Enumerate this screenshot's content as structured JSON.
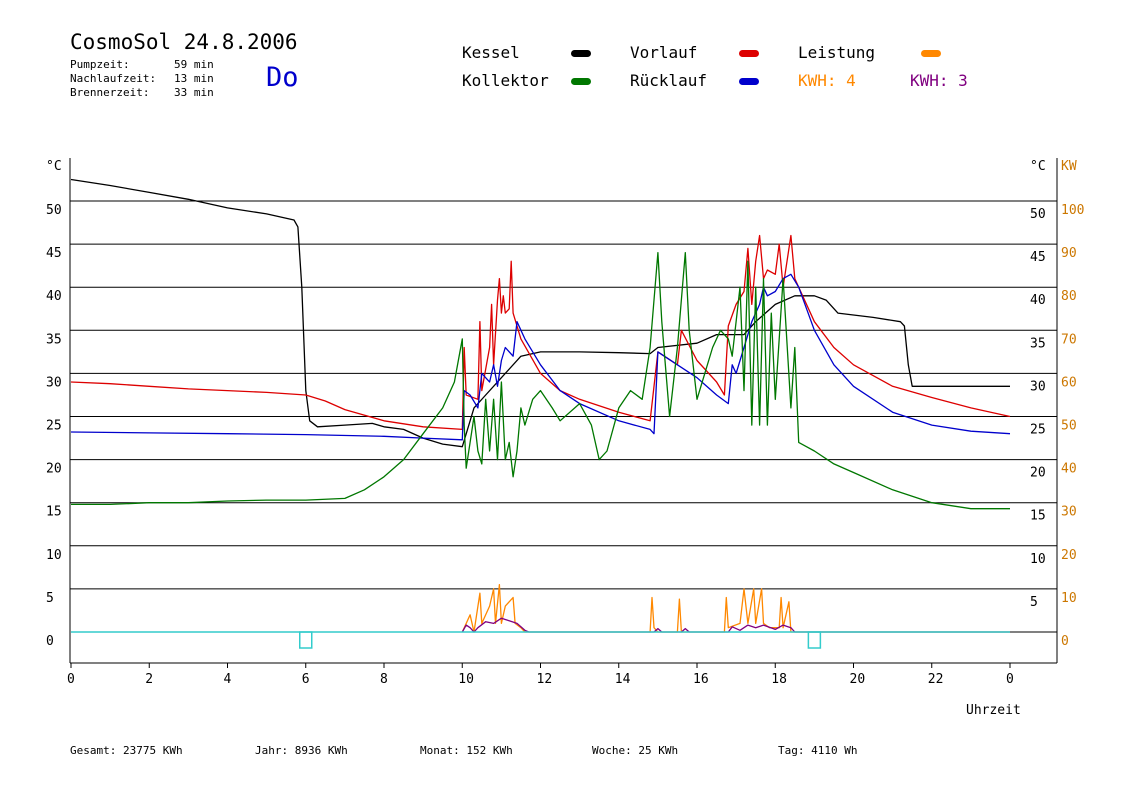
{
  "header": {
    "title": "CosmoSol 24.8.2006",
    "day": "Do",
    "stats": [
      {
        "label": "Pumpzeit:",
        "value": "59 min"
      },
      {
        "label": "Nachlaufzeit:",
        "value": "13 min"
      },
      {
        "label": "Brennerzeit:",
        "value": "33 min"
      }
    ]
  },
  "legend": {
    "kessel": "Kessel",
    "kollektor": "Kollektor",
    "vorlauf": "Vorlauf",
    "ruecklauf": "Rücklauf",
    "leistung": "Leistung",
    "kwh_orange": "KWH: 4",
    "kwh_purple": "KWH: 3"
  },
  "colors": {
    "kessel": "#000000",
    "kollektor": "#007700",
    "vorlauf": "#dd0000",
    "ruecklauf": "#0000cc",
    "leistung": "#ff8800",
    "kwh_purple": "#800080",
    "pump": "#33cccc"
  },
  "footer": [
    {
      "label": "Gesamt:",
      "value": "23775 KWh"
    },
    {
      "label": "Jahr:",
      "value": "8936 KWh"
    },
    {
      "label": "Monat:",
      "value": "152 KWh"
    },
    {
      "label": "Woche:",
      "value": "25 KWh"
    },
    {
      "label": "Tag:",
      "value": "4110 Wh"
    }
  ],
  "chart_data": {
    "type": "line",
    "xlabel": "Uhrzeit",
    "ylabel_left": "°C",
    "ylabel_right_temp": "°C",
    "ylabel_right_power": "KW",
    "xlim": [
      0,
      24
    ],
    "ylim": [
      -3.6,
      55
    ],
    "x_ticks": [
      "0",
      "2",
      "4",
      "6",
      "8",
      "10",
      "12",
      "14",
      "16",
      "18",
      "20",
      "22",
      "0"
    ],
    "y_ticks_left": [
      0,
      5,
      10,
      15,
      20,
      25,
      30,
      35,
      40,
      45,
      50
    ],
    "y_ticks_right_temp": [
      5,
      10,
      15,
      20,
      25,
      30,
      35,
      40,
      45,
      50
    ],
    "y_ticks_right_power": [
      0,
      10,
      20,
      30,
      40,
      50,
      60,
      70,
      80,
      90,
      100
    ],
    "series": [
      {
        "name": "Kessel",
        "key": "kessel",
        "points": [
          [
            0,
            52.5
          ],
          [
            1,
            51.8
          ],
          [
            2,
            51.0
          ],
          [
            3,
            50.2
          ],
          [
            4,
            49.2
          ],
          [
            5,
            48.5
          ],
          [
            5.7,
            47.8
          ],
          [
            5.8,
            47
          ],
          [
            5.9,
            40
          ],
          [
            6.0,
            28
          ],
          [
            6.1,
            24.5
          ],
          [
            6.3,
            23.8
          ],
          [
            7,
            24.0
          ],
          [
            7.7,
            24.2
          ],
          [
            8,
            23.8
          ],
          [
            8.5,
            23.5
          ],
          [
            9,
            22.5
          ],
          [
            9.5,
            21.8
          ],
          [
            10,
            21.5
          ],
          [
            10.3,
            26
          ],
          [
            10.6,
            27.5
          ],
          [
            11,
            29.5
          ],
          [
            11.5,
            32
          ],
          [
            12,
            32.5
          ],
          [
            13,
            32.5
          ],
          [
            14,
            32.4
          ],
          [
            14.8,
            32.3
          ],
          [
            15,
            33
          ],
          [
            16,
            33.5
          ],
          [
            16.5,
            34.5
          ],
          [
            17.2,
            34.5
          ],
          [
            17.5,
            36
          ],
          [
            18,
            38
          ],
          [
            18.5,
            39
          ],
          [
            19,
            39
          ],
          [
            19.3,
            38.5
          ],
          [
            19.6,
            37
          ],
          [
            20.5,
            36.5
          ],
          [
            21.2,
            36
          ],
          [
            21.3,
            35.5
          ],
          [
            21.4,
            31
          ],
          [
            21.5,
            28.5
          ],
          [
            22,
            28.5
          ],
          [
            23,
            28.5
          ],
          [
            24,
            28.5
          ]
        ]
      },
      {
        "name": "Vorlauf",
        "key": "vorlauf",
        "points": [
          [
            0,
            29
          ],
          [
            1,
            28.8
          ],
          [
            2,
            28.5
          ],
          [
            3,
            28.2
          ],
          [
            4,
            28
          ],
          [
            5,
            27.8
          ],
          [
            6,
            27.5
          ],
          [
            6.5,
            26.8
          ],
          [
            7,
            25.8
          ],
          [
            8,
            24.5
          ],
          [
            9,
            23.8
          ],
          [
            10,
            23.5
          ],
          [
            10.05,
            33
          ],
          [
            10.1,
            27.5
          ],
          [
            10.4,
            27
          ],
          [
            10.45,
            36
          ],
          [
            10.5,
            28
          ],
          [
            10.7,
            33
          ],
          [
            10.75,
            38
          ],
          [
            10.8,
            31
          ],
          [
            10.9,
            38.5
          ],
          [
            10.95,
            41
          ],
          [
            11.0,
            37
          ],
          [
            11.05,
            39
          ],
          [
            11.1,
            37
          ],
          [
            11.2,
            37.5
          ],
          [
            11.25,
            43
          ],
          [
            11.3,
            37
          ],
          [
            11.5,
            34
          ],
          [
            12,
            30
          ],
          [
            12.5,
            28
          ],
          [
            13,
            27
          ],
          [
            14,
            25.5
          ],
          [
            14.8,
            24.5
          ],
          [
            15,
            32.5
          ],
          [
            15.5,
            31
          ],
          [
            15.6,
            35
          ],
          [
            16,
            31.5
          ],
          [
            16.5,
            29
          ],
          [
            16.7,
            27.5
          ],
          [
            16.8,
            35.5
          ],
          [
            17.0,
            38
          ],
          [
            17.2,
            39.5
          ],
          [
            17.3,
            44.5
          ],
          [
            17.4,
            38
          ],
          [
            17.5,
            43
          ],
          [
            17.6,
            46
          ],
          [
            17.7,
            41
          ],
          [
            17.8,
            42
          ],
          [
            18.0,
            41.5
          ],
          [
            18.1,
            45
          ],
          [
            18.2,
            40
          ],
          [
            18.4,
            46
          ],
          [
            18.5,
            41
          ],
          [
            19,
            36
          ],
          [
            19.5,
            33
          ],
          [
            20,
            31
          ],
          [
            21,
            28.5
          ],
          [
            22,
            27.2
          ],
          [
            23,
            26
          ],
          [
            24,
            25
          ]
        ]
      },
      {
        "name": "Rücklauf",
        "key": "ruecklauf",
        "points": [
          [
            0,
            23.2
          ],
          [
            2,
            23.1
          ],
          [
            4,
            23.0
          ],
          [
            6,
            22.9
          ],
          [
            8,
            22.7
          ],
          [
            9,
            22.5
          ],
          [
            10,
            22.3
          ],
          [
            10.05,
            28
          ],
          [
            10.2,
            27.5
          ],
          [
            10.4,
            26
          ],
          [
            10.5,
            30
          ],
          [
            10.7,
            29
          ],
          [
            10.8,
            31
          ],
          [
            10.9,
            28.5
          ],
          [
            11.0,
            31.5
          ],
          [
            11.1,
            33
          ],
          [
            11.3,
            32
          ],
          [
            11.4,
            36
          ],
          [
            11.6,
            34
          ],
          [
            12,
            31
          ],
          [
            12.5,
            28
          ],
          [
            13,
            26.5
          ],
          [
            14,
            24.5
          ],
          [
            14.8,
            23.5
          ],
          [
            14.9,
            23
          ],
          [
            15,
            32.5
          ],
          [
            15.5,
            31
          ],
          [
            16,
            29.5
          ],
          [
            16.5,
            27.5
          ],
          [
            16.8,
            26.5
          ],
          [
            16.9,
            31
          ],
          [
            17.0,
            30
          ],
          [
            17.2,
            33
          ],
          [
            17.4,
            36
          ],
          [
            17.6,
            38
          ],
          [
            17.7,
            40
          ],
          [
            17.8,
            39
          ],
          [
            18,
            39.5
          ],
          [
            18.2,
            41
          ],
          [
            18.4,
            41.5
          ],
          [
            18.6,
            40
          ],
          [
            19,
            35
          ],
          [
            19.5,
            31
          ],
          [
            20,
            28.5
          ],
          [
            21,
            25.5
          ],
          [
            22,
            24
          ],
          [
            23,
            23.3
          ],
          [
            24,
            23
          ]
        ]
      },
      {
        "name": "Kollektor",
        "key": "kollektor",
        "points": [
          [
            0,
            14.8
          ],
          [
            1,
            14.8
          ],
          [
            2,
            15
          ],
          [
            3,
            15
          ],
          [
            4,
            15.2
          ],
          [
            5,
            15.3
          ],
          [
            6,
            15.3
          ],
          [
            7,
            15.5
          ],
          [
            7.5,
            16.5
          ],
          [
            8,
            18
          ],
          [
            8.5,
            20
          ],
          [
            9,
            23
          ],
          [
            9.5,
            26
          ],
          [
            9.8,
            29
          ],
          [
            10.0,
            34
          ],
          [
            10.05,
            24
          ],
          [
            10.1,
            19
          ],
          [
            10.2,
            22
          ],
          [
            10.3,
            25
          ],
          [
            10.4,
            21
          ],
          [
            10.5,
            19.5
          ],
          [
            10.6,
            27
          ],
          [
            10.7,
            21
          ],
          [
            10.8,
            27
          ],
          [
            10.9,
            20
          ],
          [
            11.0,
            29
          ],
          [
            11.1,
            20
          ],
          [
            11.2,
            22
          ],
          [
            11.3,
            18
          ],
          [
            11.4,
            21
          ],
          [
            11.5,
            26
          ],
          [
            11.6,
            24
          ],
          [
            11.8,
            27
          ],
          [
            12,
            28
          ],
          [
            12.3,
            26
          ],
          [
            12.5,
            24.5
          ],
          [
            13,
            26.5
          ],
          [
            13.3,
            24
          ],
          [
            13.5,
            20
          ],
          [
            13.7,
            21
          ],
          [
            14,
            26
          ],
          [
            14.3,
            28
          ],
          [
            14.6,
            27
          ],
          [
            14.8,
            33
          ],
          [
            15,
            44
          ],
          [
            15.1,
            36
          ],
          [
            15.3,
            25
          ],
          [
            15.5,
            33
          ],
          [
            15.7,
            44
          ],
          [
            15.8,
            35
          ],
          [
            16,
            27
          ],
          [
            16.2,
            30
          ],
          [
            16.4,
            33
          ],
          [
            16.6,
            35
          ],
          [
            16.8,
            34
          ],
          [
            16.9,
            32
          ],
          [
            17.1,
            40
          ],
          [
            17.2,
            28
          ],
          [
            17.3,
            43
          ],
          [
            17.4,
            24
          ],
          [
            17.5,
            40
          ],
          [
            17.6,
            24
          ],
          [
            17.7,
            41
          ],
          [
            17.8,
            24
          ],
          [
            17.9,
            37
          ],
          [
            18,
            27
          ],
          [
            18.2,
            41
          ],
          [
            18.4,
            26
          ],
          [
            18.5,
            33
          ],
          [
            18.6,
            22
          ],
          [
            18.8,
            21.5
          ],
          [
            19,
            21
          ],
          [
            19.5,
            19.5
          ],
          [
            20,
            18.5
          ],
          [
            21,
            16.5
          ],
          [
            22,
            15
          ],
          [
            23,
            14.3
          ],
          [
            24,
            14.3
          ]
        ]
      },
      {
        "name": "Leistung",
        "key": "leistung",
        "points": [
          [
            10,
            0
          ],
          [
            10.2,
            2
          ],
          [
            10.3,
            0
          ],
          [
            10.45,
            4.5
          ],
          [
            10.5,
            1
          ],
          [
            10.7,
            3
          ],
          [
            10.8,
            5
          ],
          [
            10.85,
            1
          ],
          [
            10.95,
            5.5
          ],
          [
            11.0,
            1
          ],
          [
            11.1,
            3
          ],
          [
            11.3,
            4
          ],
          [
            11.35,
            1
          ],
          [
            11.5,
            0.5
          ],
          [
            11.6,
            0
          ],
          [
            14.8,
            0
          ],
          [
            14.85,
            4
          ],
          [
            14.9,
            0.5
          ],
          [
            15.0,
            0
          ],
          [
            15.5,
            0
          ],
          [
            15.55,
            3.8
          ],
          [
            15.6,
            0
          ],
          [
            16.7,
            0
          ],
          [
            16.75,
            4
          ],
          [
            16.8,
            0.5
          ],
          [
            17.1,
            1
          ],
          [
            17.2,
            5
          ],
          [
            17.3,
            1
          ],
          [
            17.45,
            5
          ],
          [
            17.5,
            1
          ],
          [
            17.65,
            5
          ],
          [
            17.7,
            1
          ],
          [
            17.85,
            0.5
          ],
          [
            18.1,
            0.5
          ],
          [
            18.15,
            4
          ],
          [
            18.2,
            0.5
          ],
          [
            18.35,
            3.5
          ],
          [
            18.4,
            0
          ],
          [
            24,
            0
          ]
        ]
      },
      {
        "name": "KWH lila",
        "key": "kwh_purple",
        "points": [
          [
            10,
            0
          ],
          [
            10.1,
            0.8
          ],
          [
            10.2,
            0.5
          ],
          [
            10.3,
            0
          ],
          [
            10.4,
            0.5
          ],
          [
            10.6,
            1.2
          ],
          [
            10.8,
            1
          ],
          [
            11.0,
            1.6
          ],
          [
            11.2,
            1.3
          ],
          [
            11.4,
            1
          ],
          [
            11.6,
            0.2
          ],
          [
            11.7,
            0
          ],
          [
            14.9,
            0
          ],
          [
            15.0,
            0.4
          ],
          [
            15.1,
            0
          ],
          [
            15.6,
            0
          ],
          [
            15.7,
            0.4
          ],
          [
            15.8,
            0
          ],
          [
            16.8,
            0
          ],
          [
            16.9,
            0.6
          ],
          [
            17.1,
            0.2
          ],
          [
            17.3,
            0.8
          ],
          [
            17.5,
            0.5
          ],
          [
            17.7,
            0.8
          ],
          [
            18.0,
            0.3
          ],
          [
            18.2,
            0.8
          ],
          [
            18.4,
            0.5
          ],
          [
            18.5,
            0
          ],
          [
            24,
            0
          ]
        ]
      }
    ],
    "pump_markers_hours": [
      6,
      19
    ]
  }
}
